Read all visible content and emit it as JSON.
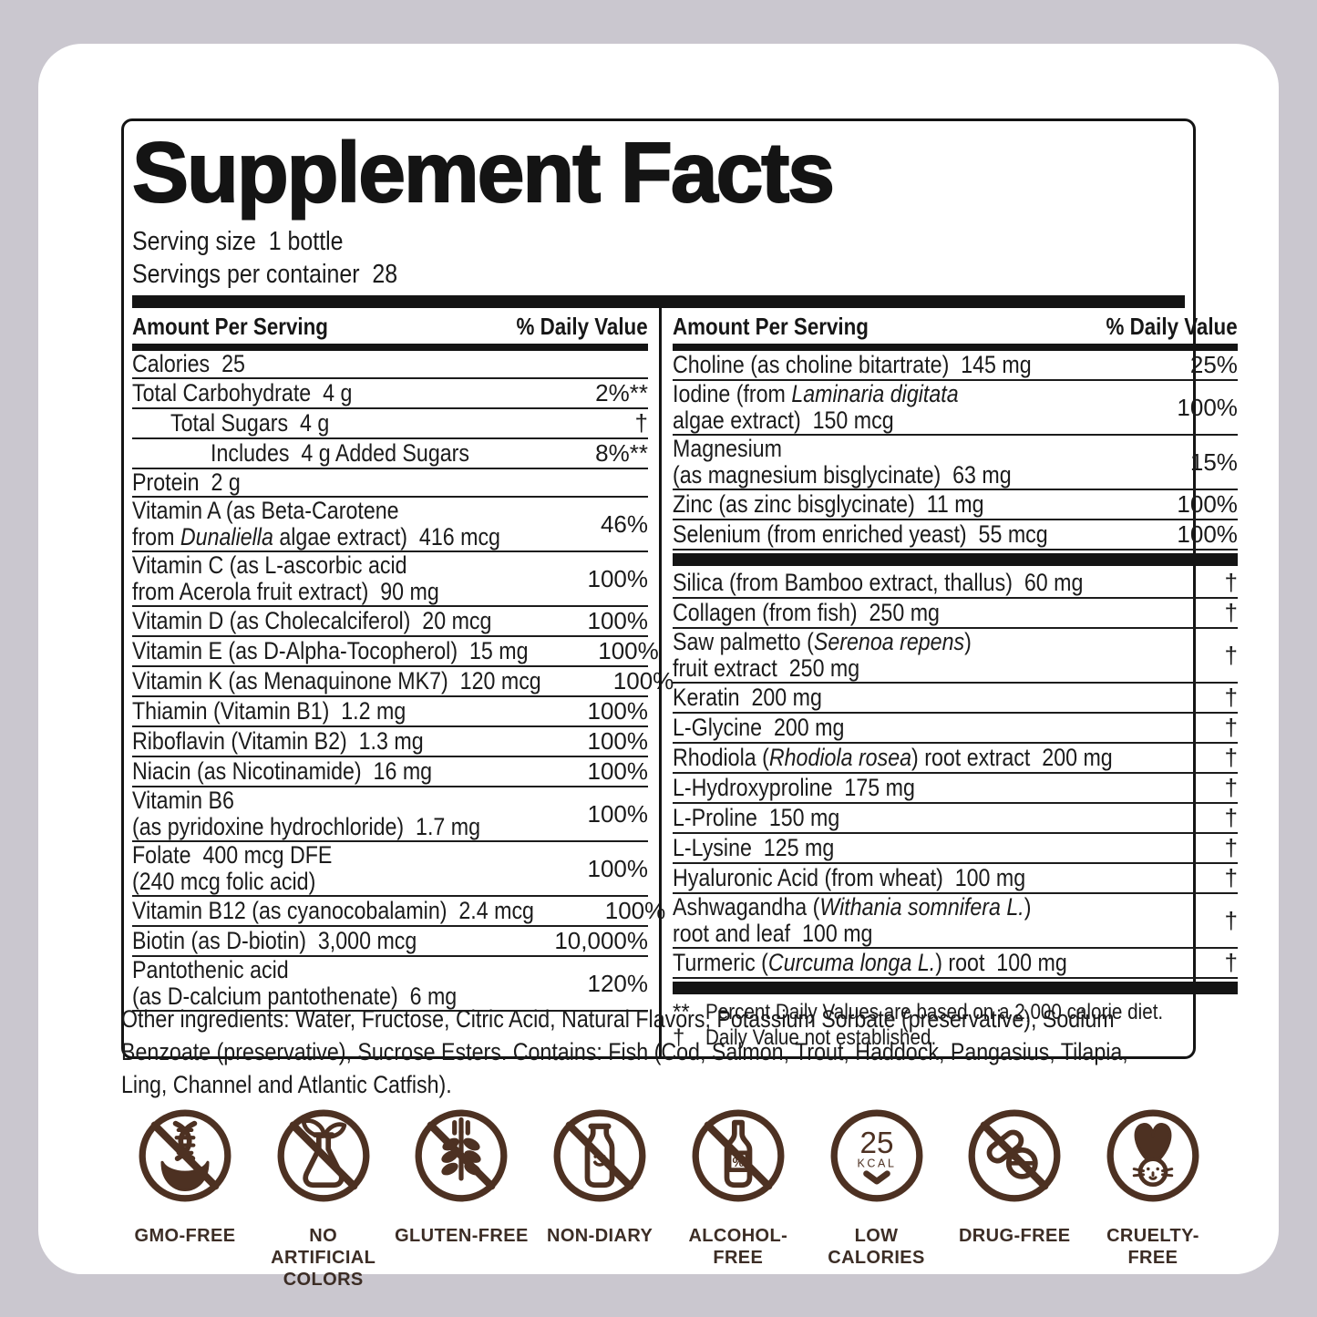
{
  "page": {
    "background": "#cac7cf",
    "card_background": "#ffffff"
  },
  "colors": {
    "ink": "#161616",
    "rule_black": "#141414",
    "icon_brown": "#4d3122",
    "badge_label": "#3c2d25"
  },
  "label": {
    "title": "Supplement Facts",
    "serving_size": {
      "label": "Serving size",
      "value": "1 bottle"
    },
    "servings_per_container": {
      "label": "Servings per container",
      "value": "28"
    },
    "columns": {
      "amount_header": "Amount Per Serving",
      "dv_header": "% Daily Value"
    },
    "left_rows": [
      {
        "name": "Calories  25",
        "value": ""
      },
      {
        "name": "Total Carbohydrate  4 g",
        "value": "2%**"
      },
      {
        "name": "Total Sugars  4 g",
        "value": "†",
        "indent": 1
      },
      {
        "name": "Includes  4 g Added Sugars",
        "value": "8%**",
        "indent": 2
      },
      {
        "name": "Protein  2 g",
        "value": ""
      },
      {
        "name": "Vitamin A (as Beta-Carotene\nfrom *Dunaliella* algae extract)  416 mcg",
        "value": "46%"
      },
      {
        "name": "Vitamin C (as L-ascorbic acid\nfrom Acerola fruit extract)  90 mg",
        "value": "100%"
      },
      {
        "name": "Vitamin D (as Cholecalciferol)  20 mcg",
        "value": "100%"
      },
      {
        "name": "Vitamin E (as D-Alpha-Tocopherol)  15 mg",
        "value": "100%"
      },
      {
        "name": "Vitamin K (as Menaquinone MK7)  120 mcg",
        "value": "100%"
      },
      {
        "name": "Thiamin (Vitamin B1)  1.2 mg",
        "value": "100%"
      },
      {
        "name": "Riboflavin (Vitamin B2)  1.3 mg",
        "value": "100%"
      },
      {
        "name": "Niacin (as Nicotinamide)  16 mg",
        "value": "100%"
      },
      {
        "name": "Vitamin B6\n(as pyridoxine hydrochloride)  1.7 mg",
        "value": "100%"
      },
      {
        "name": "Folate  400 mcg DFE\n(240 mcg folic acid)",
        "value": "100%"
      },
      {
        "name": "Vitamin B12 (as cyanocobalamin)  2.4 mcg",
        "value": "100%"
      },
      {
        "name": "Biotin (as D-biotin)  3,000 mcg",
        "value": "10,000%"
      },
      {
        "name": "Pantothenic acid\n(as D-calcium pantothenate)  6 mg",
        "value": "120%"
      }
    ],
    "right_rows": [
      {
        "name": "Choline (as choline bitartrate)  145 mg",
        "value": "25%"
      },
      {
        "name": "Iodine (from *Laminaria digitata*\nalgae extract)  150 mcg",
        "value": "100%"
      },
      {
        "name": "Magnesium\n(as magnesium bisglycinate)  63 mg",
        "value": "15%"
      },
      {
        "name": "Zinc (as zinc bisglycinate)  11 mg",
        "value": "100%"
      },
      {
        "name": "Selenium (from enriched yeast)  55 mcg",
        "value": "100%"
      },
      {
        "type": "bar"
      },
      {
        "name": "Silica (from Bamboo extract, thallus)  60 mg",
        "value": "†"
      },
      {
        "name": "Collagen (from fish)  250 mg",
        "value": "†"
      },
      {
        "name": "Saw palmetto (*Serenoa repens*)\nfruit extract  250 mg",
        "value": "†"
      },
      {
        "name": "Keratin  200 mg",
        "value": "†"
      },
      {
        "name": "L-Glycine  200 mg",
        "value": "†"
      },
      {
        "name": "Rhodiola (*Rhodiola rosea*) root extract  200 mg",
        "value": "†"
      },
      {
        "name": "L-Hydroxyproline  175 mg",
        "value": "†"
      },
      {
        "name": "L-Proline  150 mg",
        "value": "†"
      },
      {
        "name": "L-Lysine  125 mg",
        "value": "†"
      },
      {
        "name": "Hyaluronic Acid (from wheat)  100 mg",
        "value": "†"
      },
      {
        "name": "Ashwagandha (*Withania somnifera L.*)\nroot and leaf  100 mg",
        "value": "†"
      },
      {
        "name": "Turmeric (*Curcuma longa L.*) root  100 mg",
        "value": "†"
      },
      {
        "type": "bar"
      }
    ],
    "footnotes": [
      {
        "marker": "**",
        "text": "Percent Daily Values are based on a 2,000 calorie diet."
      },
      {
        "marker": "†",
        "text": "Daily Value not established."
      }
    ],
    "other_ingredients": "Other ingredients: Water, Fructose, Citric Acid, Natural Flavors, Potassium Sorbate (preservative), Sodium\nBenzoate (preservative), Sucrose Esters. Contains: Fish (Cod, Salmon, Trout, Haddock, Pangasius, Tilapia,\nLing, Channel and Atlantic Catfish).",
    "badges": [
      {
        "label": "GMO-FREE"
      },
      {
        "label": "NO ARTIFICIAL\nCOLORS"
      },
      {
        "label": "GLUTEN-FREE"
      },
      {
        "label": "NON-DIARY"
      },
      {
        "label": "ALCOHOL-FREE"
      },
      {
        "label": "LOW CALORIES",
        "icon_value": "25",
        "icon_unit": "KCAL"
      },
      {
        "label": "DRUG-FREE"
      },
      {
        "label": "CRUELTY-FREE"
      }
    ]
  }
}
